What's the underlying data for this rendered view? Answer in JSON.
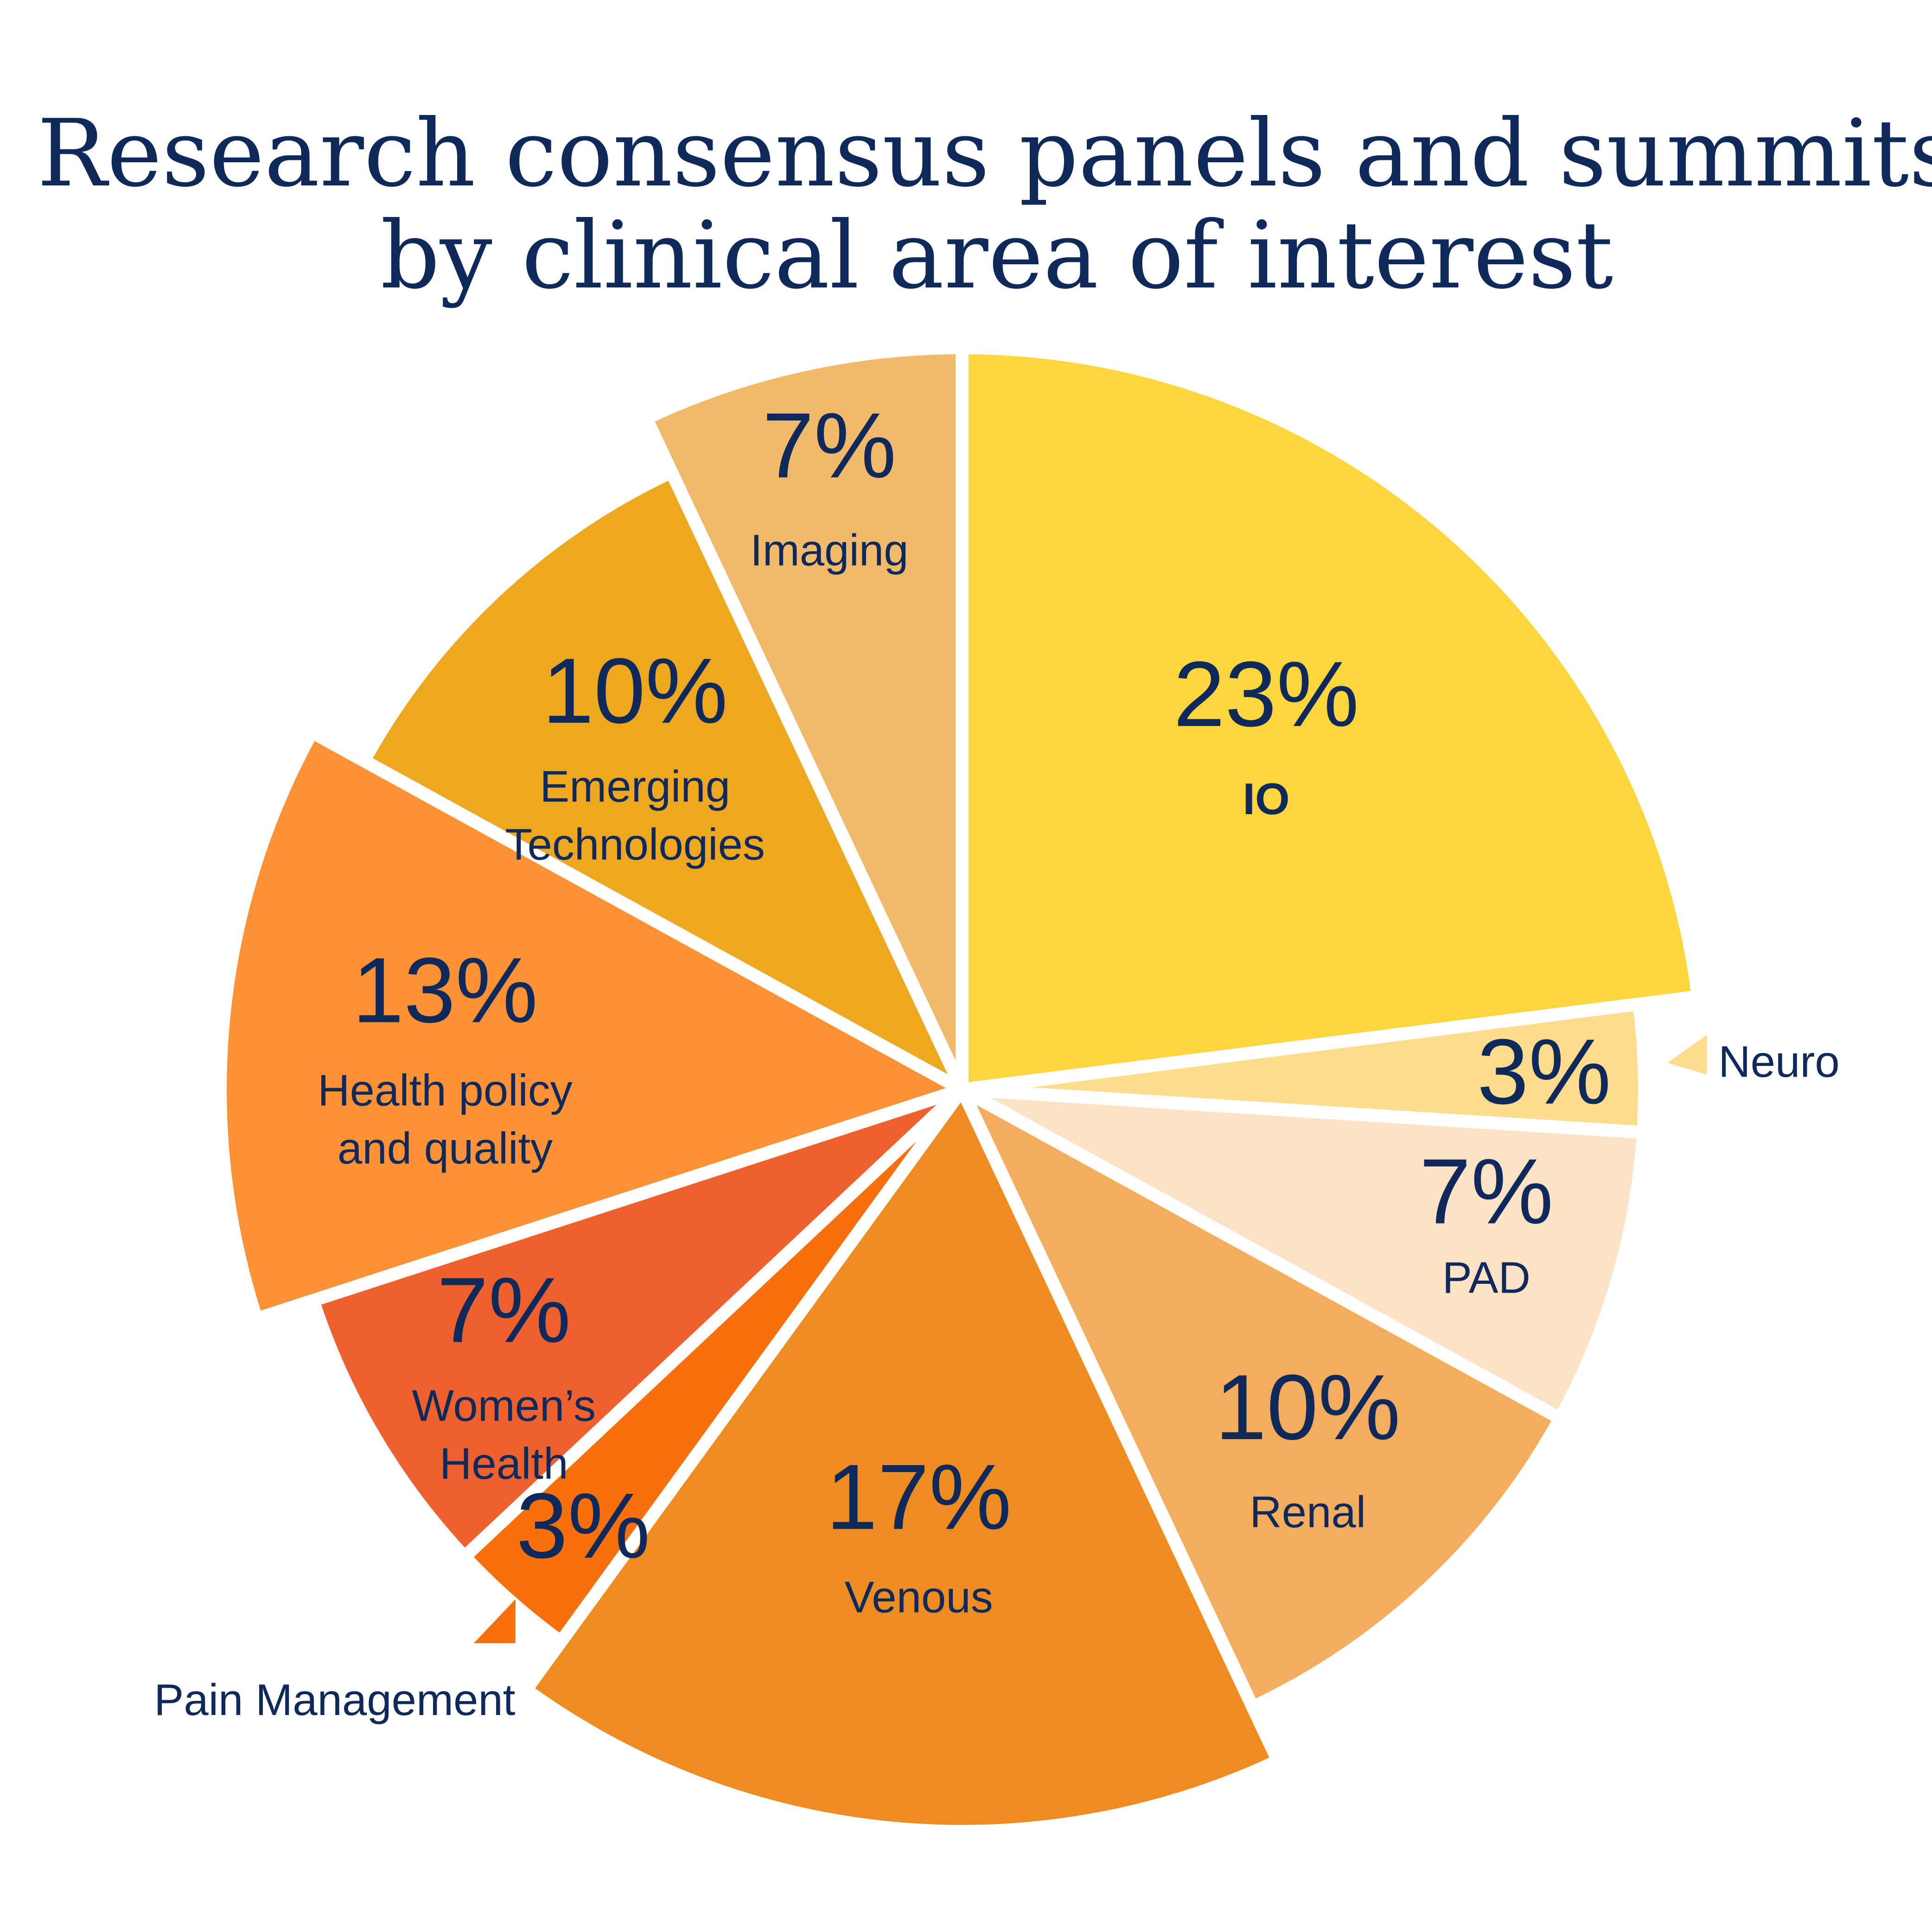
{
  "chart_data": {
    "type": "pie",
    "title_lines": [
      "Research consensus panels and summits",
      "by clinical area of interest"
    ],
    "start_angle_deg": 0,
    "direction": "clockwise",
    "slices": [
      {
        "label": "IO",
        "label_lines": [
          "IO"
        ],
        "value": 23,
        "value_label": "23%",
        "color": "#FDD53D"
      },
      {
        "label": "Neuro",
        "label_lines": [
          "Neuro"
        ],
        "value": 3,
        "value_label": "3%",
        "color": "#FDDC8E"
      },
      {
        "label": "PAD",
        "label_lines": [
          "PAD"
        ],
        "value": 7,
        "value_label": "7%",
        "color": "#FCE2C6"
      },
      {
        "label": "Renal",
        "label_lines": [
          "Renal"
        ],
        "value": 10,
        "value_label": "10%",
        "color": "#F4AD5E"
      },
      {
        "label": "Venous",
        "label_lines": [
          "Venous"
        ],
        "value": 17,
        "value_label": "17%",
        "color": "#EF8C21"
      },
      {
        "label": "Pain Management",
        "label_lines": [
          "Pain Management"
        ],
        "value": 3,
        "value_label": "3%",
        "color": "#F7700C"
      },
      {
        "label": "Women’s Health",
        "label_lines": [
          "Women’s",
          "Health"
        ],
        "value": 7,
        "value_label": "7%",
        "color": "#EF602F"
      },
      {
        "label": "Health policy and quality",
        "label_lines": [
          "Health policy",
          "and quality"
        ],
        "value": 13,
        "value_label": "13%",
        "color": "#FC9135"
      },
      {
        "label": "Emerging Technologies",
        "label_lines": [
          "Emerging",
          "Technologies"
        ],
        "value": 10,
        "value_label": "10%",
        "color": "#EEA820"
      },
      {
        "label": "Imaging",
        "label_lines": [
          "Imaging"
        ],
        "value": 7,
        "value_label": "7%",
        "color": "#F1B96A"
      }
    ]
  }
}
